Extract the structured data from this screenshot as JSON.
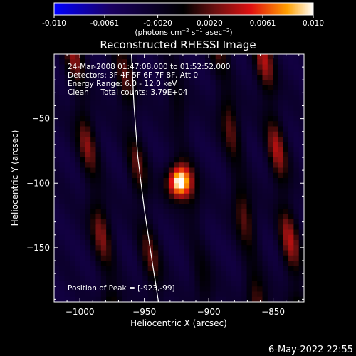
{
  "colorbar": {
    "tick_labels": [
      "-0.010",
      "-0.0061",
      "-0.0020",
      "0.0020",
      "0.0061",
      "0.010"
    ],
    "tick_values": [
      -0.01,
      -0.0061,
      -0.002,
      0.002,
      0.0061,
      0.01
    ],
    "range": [
      -0.01,
      0.01
    ],
    "unit_parts": {
      "a": "(photons cm",
      "a_sup": "−2",
      "b": " s",
      "b_sup": "−1",
      "c": " asec",
      "c_sup": "−2",
      "d": ")"
    },
    "colors": [
      "#0000ff",
      "#1a0060",
      "#000000",
      "#6a1010",
      "#e01010",
      "#ffa000",
      "#ffffff"
    ]
  },
  "chart_data": {
    "type": "heatmap",
    "title": "Reconstructed RHESSI Image",
    "xlabel": "Heliocentric X (arcsec)",
    "ylabel": "Heliocentric Y (arcsec)",
    "xlim": [
      -1020,
      -826
    ],
    "ylim": [
      -192,
      0
    ],
    "x_ticks": [
      -1000,
      -950,
      -900,
      -850
    ],
    "x_tick_labels": [
      "−1000",
      "−950",
      "−900",
      "−850"
    ],
    "y_ticks": [
      -150,
      -100,
      -50
    ],
    "y_tick_labels": [
      "−150",
      "−100",
      "−50"
    ],
    "annotations": [
      "24-Mar-2008 01:47:08.000 to 01:52:52.000",
      "Detectors: 3F 4F 5F 6F 7F 8F, Att 0",
      "Energy Range: 6.0 - 12.0 keV",
      "Clean     Total counts: 3.79E+04"
    ],
    "peak_label": "Position of Peak = [-923,-99]",
    "peak": {
      "x": -923,
      "y": -99
    },
    "stripes": [
      {
        "x_at_top": -1005,
        "x_at_bottom": -975,
        "amp": 0.0055
      },
      {
        "x_at_top": -968,
        "x_at_bottom": -940,
        "amp": 0.0045
      },
      {
        "x_at_top": -930,
        "x_at_bottom": -902,
        "amp": 0.0028
      },
      {
        "x_at_top": -892,
        "x_at_bottom": -862,
        "amp": 0.005
      },
      {
        "x_at_top": -858,
        "x_at_bottom": -830,
        "amp": 0.0062
      }
    ],
    "limb": [
      [
        -960,
        0
      ],
      [
        -958,
        -40
      ],
      [
        -955,
        -80
      ],
      [
        -950,
        -120
      ],
      [
        -944,
        -160
      ],
      [
        -939,
        -192
      ]
    ]
  },
  "footer": {
    "date": "6-May-2022 22:55"
  }
}
